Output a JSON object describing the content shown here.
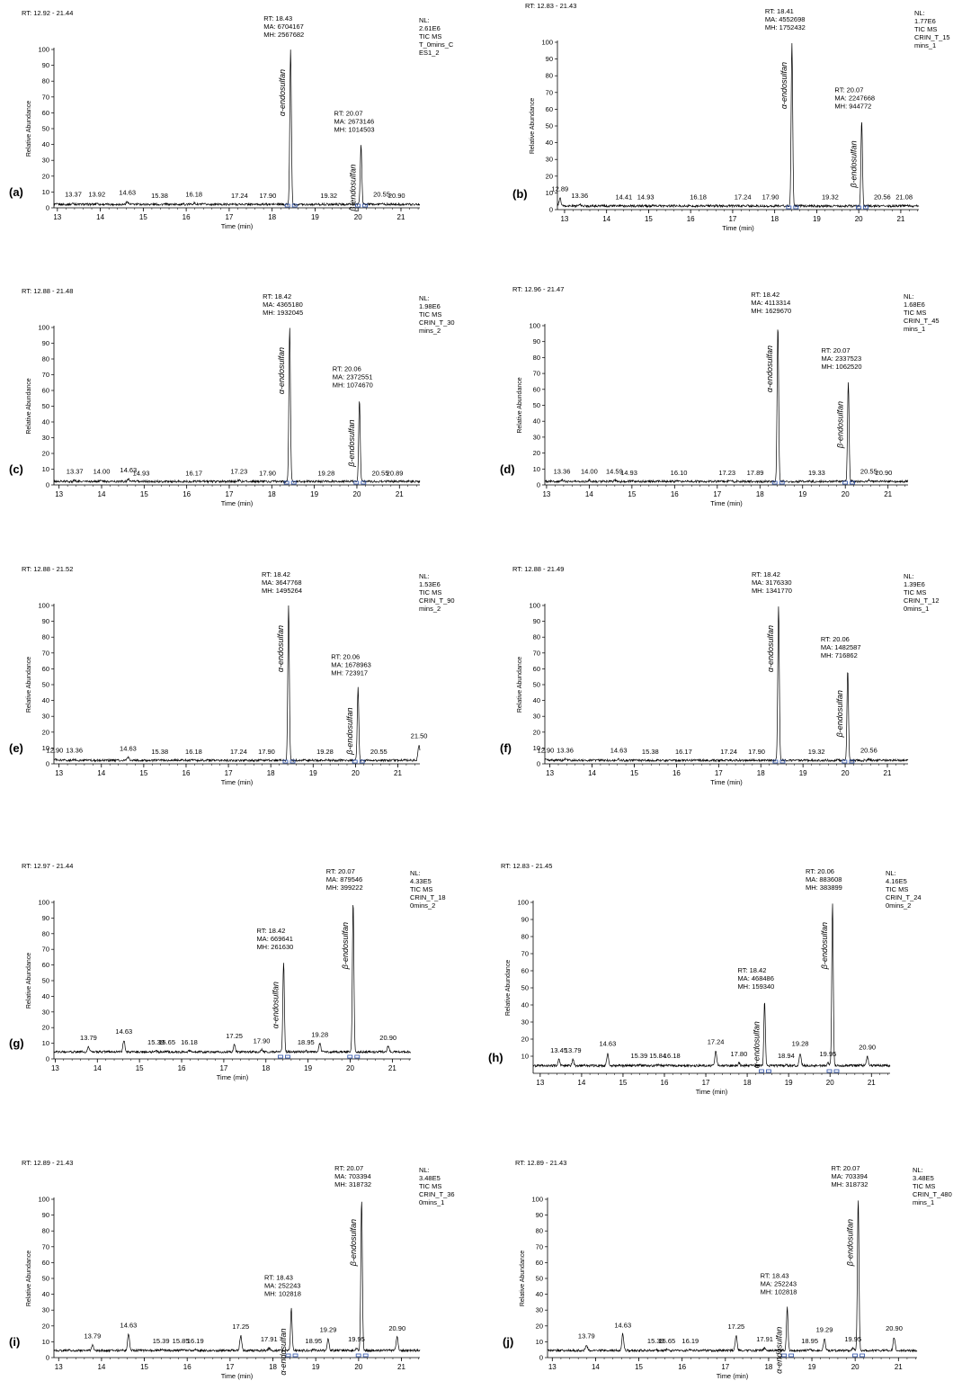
{
  "figure": {
    "y_axis_label": "Relative Abundance",
    "x_axis_label": "Time (min)",
    "peak_labels": {
      "alpha": "α-endosulfan",
      "beta": "β-endosulfan"
    }
  },
  "chart_data": [
    {
      "type": "line",
      "panel_label": "(a)",
      "range_label": "RT: 12.92 - 21.44",
      "nl_text": [
        "NL:",
        "2.61E6",
        "TIC MS",
        "T_0mins_C",
        "ES1_2"
      ],
      "xlim": [
        12.92,
        21.44
      ],
      "ylim": [
        0,
        100
      ],
      "xticks": [
        13,
        14,
        15,
        16,
        17,
        18,
        19,
        20,
        21
      ],
      "yticks": [
        0,
        10,
        20,
        30,
        40,
        50,
        60,
        70,
        80,
        90,
        100
      ],
      "peaks": [
        {
          "rt": 18.43,
          "height": 100,
          "info": [
            "RT: 18.43",
            "MA: 6704167",
            "MH: 2567682"
          ],
          "compound": "alpha"
        },
        {
          "rt": 20.07,
          "height": 40,
          "info": [
            "RT: 20.07",
            "MA: 2673146",
            "MH: 1014503"
          ],
          "compound": "beta"
        }
      ],
      "minor_peaks": [
        {
          "rt": 13.37,
          "height": 3
        },
        {
          "rt": 13.92,
          "height": 3
        },
        {
          "rt": 14.63,
          "height": 4
        },
        {
          "rt": 15.38,
          "height": 2
        },
        {
          "rt": 16.18,
          "height": 3
        },
        {
          "rt": 17.24,
          "height": 2
        },
        {
          "rt": 17.9,
          "height": 2
        },
        {
          "rt": 19.32,
          "height": 2
        },
        {
          "rt": 20.55,
          "height": 3
        },
        {
          "rt": 20.9,
          "height": 2
        }
      ]
    },
    {
      "type": "line",
      "panel_label": "(b)",
      "range_label": "RT: 12.83 - 21.43",
      "nl_text": [
        "NL:",
        "1.77E6",
        "TIC MS",
        "CRIN_T_15",
        "mins_1"
      ],
      "xlim": [
        12.83,
        21.43
      ],
      "ylim": [
        0,
        100
      ],
      "xticks": [
        13,
        14,
        15,
        16,
        17,
        18,
        19,
        20,
        21
      ],
      "yticks": [
        0,
        10,
        20,
        30,
        40,
        50,
        60,
        70,
        80,
        90,
        100
      ],
      "peaks": [
        {
          "rt": 18.41,
          "height": 100,
          "info": [
            "RT: 18.41",
            "MA: 4552698",
            "MH: 1752432"
          ],
          "compound": "alpha"
        },
        {
          "rt": 20.07,
          "height": 53,
          "info": [
            "RT: 20.07",
            "MA: 2247668",
            "MH: 944772"
          ],
          "compound": "beta"
        }
      ],
      "minor_peaks": [
        {
          "rt": 12.89,
          "height": 7
        },
        {
          "rt": 13.36,
          "height": 3
        },
        {
          "rt": 14.41,
          "height": 2
        },
        {
          "rt": 14.93,
          "height": 2
        },
        {
          "rt": 16.18,
          "height": 2
        },
        {
          "rt": 17.24,
          "height": 2
        },
        {
          "rt": 17.9,
          "height": 2
        },
        {
          "rt": 19.32,
          "height": 2
        },
        {
          "rt": 20.56,
          "height": 2
        },
        {
          "rt": 21.08,
          "height": 2
        }
      ]
    },
    {
      "type": "line",
      "panel_label": "(c)",
      "range_label": "RT: 12.88 - 21.48",
      "nl_text": [
        "NL:",
        "1.98E6",
        "TIC MS",
        "CRIN_T_30",
        "mins_2"
      ],
      "xlim": [
        12.88,
        21.48
      ],
      "ylim": [
        0,
        100
      ],
      "xticks": [
        13,
        14,
        15,
        16,
        17,
        18,
        19,
        20,
        21
      ],
      "yticks": [
        0,
        10,
        20,
        30,
        40,
        50,
        60,
        70,
        80,
        90,
        100
      ],
      "peaks": [
        {
          "rt": 18.42,
          "height": 100,
          "info": [
            "RT: 18.42",
            "MA: 4365180",
            "MH: 1932045"
          ],
          "compound": "alpha"
        },
        {
          "rt": 20.06,
          "height": 54,
          "info": [
            "RT: 20.06",
            "MA: 2372551",
            "MH: 1074670"
          ],
          "compound": "beta"
        }
      ],
      "minor_peaks": [
        {
          "rt": 13.37,
          "height": 3
        },
        {
          "rt": 14.0,
          "height": 3
        },
        {
          "rt": 14.63,
          "height": 4
        },
        {
          "rt": 14.93,
          "height": 2
        },
        {
          "rt": 16.17,
          "height": 2
        },
        {
          "rt": 17.23,
          "height": 3
        },
        {
          "rt": 17.9,
          "height": 2
        },
        {
          "rt": 19.28,
          "height": 2
        },
        {
          "rt": 20.55,
          "height": 2
        },
        {
          "rt": 20.89,
          "height": 2
        }
      ]
    },
    {
      "type": "line",
      "panel_label": "(d)",
      "range_label": "RT: 12.96 - 21.47",
      "nl_text": [
        "NL:",
        "1.68E6",
        "TIC MS",
        "CRIN_T_45",
        "mins_1"
      ],
      "xlim": [
        12.96,
        21.47
      ],
      "ylim": [
        0,
        100
      ],
      "xticks": [
        13,
        14,
        15,
        16,
        17,
        18,
        19,
        20,
        21
      ],
      "yticks": [
        0,
        10,
        20,
        30,
        40,
        50,
        60,
        70,
        80,
        90,
        100
      ],
      "peaks": [
        {
          "rt": 18.42,
          "height": 100,
          "info": [
            "RT: 18.42",
            "MA: 4113314",
            "MH: 1629670"
          ],
          "compound": "alpha"
        },
        {
          "rt": 20.07,
          "height": 65,
          "info": [
            "RT: 20.07",
            "MA: 2337523",
            "MH: 1062520"
          ],
          "compound": "beta"
        }
      ],
      "minor_peaks": [
        {
          "rt": 13.36,
          "height": 3
        },
        {
          "rt": 14.0,
          "height": 3
        },
        {
          "rt": 14.59,
          "height": 3
        },
        {
          "rt": 14.93,
          "height": 2
        },
        {
          "rt": 16.1,
          "height": 2
        },
        {
          "rt": 17.23,
          "height": 2
        },
        {
          "rt": 17.89,
          "height": 2
        },
        {
          "rt": 19.33,
          "height": 2
        },
        {
          "rt": 20.55,
          "height": 3
        },
        {
          "rt": 20.9,
          "height": 2
        }
      ]
    },
    {
      "type": "line",
      "panel_label": "(e)",
      "range_label": "RT: 12.88 - 21.52",
      "nl_text": [
        "NL:",
        "1.53E6",
        "TIC MS",
        "CRIN_T_90",
        "mins_2"
      ],
      "xlim": [
        12.88,
        21.52
      ],
      "ylim": [
        0,
        100
      ],
      "xticks": [
        13,
        14,
        15,
        16,
        17,
        18,
        19,
        20,
        21
      ],
      "yticks": [
        0,
        10,
        20,
        30,
        40,
        50,
        60,
        70,
        80,
        90,
        100
      ],
      "peaks": [
        {
          "rt": 18.42,
          "height": 100,
          "info": [
            "RT: 18.42",
            "MA: 3647768",
            "MH: 1495264"
          ],
          "compound": "alpha"
        },
        {
          "rt": 20.06,
          "height": 48,
          "info": [
            "RT: 20.06",
            "MA: 1678963",
            "MH: 723917"
          ],
          "compound": "beta"
        }
      ],
      "minor_peaks": [
        {
          "rt": 12.9,
          "height": 3
        },
        {
          "rt": 13.36,
          "height": 3
        },
        {
          "rt": 14.63,
          "height": 4
        },
        {
          "rt": 15.38,
          "height": 2
        },
        {
          "rt": 16.18,
          "height": 2
        },
        {
          "rt": 17.24,
          "height": 2
        },
        {
          "rt": 17.9,
          "height": 2
        },
        {
          "rt": 19.28,
          "height": 2
        },
        {
          "rt": 20.55,
          "height": 2
        },
        {
          "rt": 21.5,
          "height": 12
        }
      ]
    },
    {
      "type": "line",
      "panel_label": "(f)",
      "range_label": "RT: 12.88 - 21.49",
      "nl_text": [
        "NL:",
        "1.39E6",
        "TIC MS",
        "CRIN_T_12",
        "0mins_1"
      ],
      "xlim": [
        12.88,
        21.49
      ],
      "ylim": [
        0,
        100
      ],
      "xticks": [
        13,
        14,
        15,
        16,
        17,
        18,
        19,
        20,
        21
      ],
      "yticks": [
        0,
        10,
        20,
        30,
        40,
        50,
        60,
        70,
        80,
        90,
        100
      ],
      "peaks": [
        {
          "rt": 18.42,
          "height": 100,
          "info": [
            "RT: 18.42",
            "MA: 3176330",
            "MH: 1341770"
          ],
          "compound": "alpha"
        },
        {
          "rt": 20.06,
          "height": 59,
          "info": [
            "RT: 20.06",
            "MA: 1482587",
            "MH: 716862"
          ],
          "compound": "beta"
        }
      ],
      "minor_peaks": [
        {
          "rt": 12.9,
          "height": 3
        },
        {
          "rt": 13.36,
          "height": 3
        },
        {
          "rt": 14.63,
          "height": 3
        },
        {
          "rt": 15.38,
          "height": 2
        },
        {
          "rt": 16.17,
          "height": 2
        },
        {
          "rt": 17.24,
          "height": 2
        },
        {
          "rt": 17.9,
          "height": 2
        },
        {
          "rt": 19.32,
          "height": 2
        },
        {
          "rt": 20.56,
          "height": 3
        }
      ]
    },
    {
      "type": "line",
      "panel_label": "(g)",
      "range_label": "RT: 12.97 - 21.44",
      "nl_text": [
        "NL:",
        "4.33E5",
        "TIC MS",
        "CRIN_T_18",
        "0mins_2"
      ],
      "xlim": [
        12.97,
        21.44
      ],
      "ylim": [
        0,
        100
      ],
      "xticks": [
        13,
        14,
        15,
        16,
        17,
        18,
        19,
        20,
        21
      ],
      "yticks": [
        0,
        10,
        20,
        30,
        40,
        50,
        60,
        70,
        80,
        90,
        100
      ],
      "peaks": [
        {
          "rt": 18.42,
          "height": 62,
          "info": [
            "RT: 18.42",
            "MA: 669641",
            "MH: 261630"
          ],
          "compound": "alpha"
        },
        {
          "rt": 20.07,
          "height": 100,
          "info": [
            "RT: 20.07",
            "MA: 879546",
            "MH: 399222"
          ],
          "compound": "beta"
        }
      ],
      "minor_peaks": [
        {
          "rt": 13.79,
          "height": 8
        },
        {
          "rt": 14.63,
          "height": 12
        },
        {
          "rt": 15.39,
          "height": 5
        },
        {
          "rt": 15.65,
          "height": 5
        },
        {
          "rt": 16.18,
          "height": 5
        },
        {
          "rt": 17.25,
          "height": 9
        },
        {
          "rt": 17.9,
          "height": 6
        },
        {
          "rt": 18.95,
          "height": 5
        },
        {
          "rt": 19.28,
          "height": 10
        },
        {
          "rt": 20.9,
          "height": 8
        }
      ]
    },
    {
      "type": "line",
      "panel_label": "(h)",
      "range_label": "RT: 12.83 - 21.45",
      "nl_text": [
        "NL:",
        "4.16E5",
        "TIC MS",
        "CRIN_T_24",
        "0mins_2"
      ],
      "xlim": [
        12.83,
        21.45
      ],
      "ylim": [
        0,
        100
      ],
      "xticks": [
        13,
        14,
        15,
        16,
        17,
        18,
        19,
        20,
        21
      ],
      "yticks": [
        10,
        20,
        30,
        40,
        50,
        60,
        70,
        80,
        90,
        100
      ],
      "peaks": [
        {
          "rt": 18.42,
          "height": 42,
          "info": [
            "RT: 18.42",
            "MA: 468486",
            "MH: 159340"
          ],
          "compound": "alpha"
        },
        {
          "rt": 20.06,
          "height": 100,
          "info": [
            "RT: 20.06",
            "MA: 883608",
            "MH: 383899"
          ],
          "compound": "beta"
        }
      ],
      "minor_peaks": [
        {
          "rt": 13.45,
          "height": 8
        },
        {
          "rt": 13.79,
          "height": 8
        },
        {
          "rt": 14.63,
          "height": 12
        },
        {
          "rt": 15.39,
          "height": 5
        },
        {
          "rt": 15.84,
          "height": 5
        },
        {
          "rt": 16.18,
          "height": 5
        },
        {
          "rt": 17.24,
          "height": 13
        },
        {
          "rt": 17.8,
          "height": 6
        },
        {
          "rt": 18.94,
          "height": 5
        },
        {
          "rt": 19.28,
          "height": 12
        },
        {
          "rt": 19.95,
          "height": 6
        },
        {
          "rt": 20.9,
          "height": 10
        }
      ]
    },
    {
      "type": "line",
      "panel_label": "(i)",
      "range_label": "RT: 12.89 - 21.43",
      "nl_text": [
        "NL:",
        "3.48E5",
        "TIC MS",
        "CRIN_T_36",
        "0mins_1"
      ],
      "xlim": [
        12.89,
        21.43
      ],
      "ylim": [
        0,
        100
      ],
      "xticks": [
        13,
        14,
        15,
        16,
        17,
        18,
        19,
        20,
        21
      ],
      "yticks": [
        0,
        10,
        20,
        30,
        40,
        50,
        60,
        70,
        80,
        90,
        100
      ],
      "peaks": [
        {
          "rt": 18.43,
          "height": 31,
          "info": [
            "RT: 18.43",
            "MA: 252243",
            "MH: 102818"
          ],
          "compound": "alpha"
        },
        {
          "rt": 20.07,
          "height": 100,
          "info": [
            "RT: 20.07",
            "MA: 703394",
            "MH: 318732"
          ],
          "compound": "beta"
        }
      ],
      "minor_peaks": [
        {
          "rt": 13.79,
          "height": 8
        },
        {
          "rt": 14.63,
          "height": 15
        },
        {
          "rt": 15.39,
          "height": 5
        },
        {
          "rt": 15.85,
          "height": 5
        },
        {
          "rt": 16.19,
          "height": 5
        },
        {
          "rt": 17.25,
          "height": 14
        },
        {
          "rt": 17.91,
          "height": 6
        },
        {
          "rt": 18.95,
          "height": 5
        },
        {
          "rt": 19.29,
          "height": 12
        },
        {
          "rt": 19.95,
          "height": 6
        },
        {
          "rt": 20.9,
          "height": 13
        }
      ]
    },
    {
      "type": "line",
      "panel_label": "(j)",
      "range_label": "RT: 12.89 - 21.43",
      "nl_text": [
        "NL:",
        "3.48E5",
        "TIC MS",
        "CRIN_T_480",
        "mins_1"
      ],
      "xlim": [
        12.89,
        21.43
      ],
      "ylim": [
        0,
        100
      ],
      "xticks": [
        13,
        14,
        15,
        16,
        17,
        18,
        19,
        20,
        21
      ],
      "yticks": [
        0,
        10,
        20,
        30,
        40,
        50,
        60,
        70,
        80,
        90,
        100
      ],
      "peaks": [
        {
          "rt": 18.43,
          "height": 32,
          "info": [
            "RT: 18.43",
            "MA: 252243",
            "MH: 102818"
          ],
          "compound": "alpha"
        },
        {
          "rt": 20.07,
          "height": 100,
          "info": [
            "RT: 20.07",
            "MA: 703394",
            "MH: 318732"
          ],
          "compound": "beta"
        }
      ],
      "minor_peaks": [
        {
          "rt": 13.79,
          "height": 8
        },
        {
          "rt": 14.63,
          "height": 15
        },
        {
          "rt": 15.39,
          "height": 5
        },
        {
          "rt": 15.65,
          "height": 5
        },
        {
          "rt": 16.19,
          "height": 5
        },
        {
          "rt": 17.25,
          "height": 14
        },
        {
          "rt": 17.91,
          "height": 6
        },
        {
          "rt": 18.95,
          "height": 5
        },
        {
          "rt": 19.29,
          "height": 12
        },
        {
          "rt": 19.95,
          "height": 6
        },
        {
          "rt": 20.9,
          "height": 13
        }
      ]
    }
  ]
}
